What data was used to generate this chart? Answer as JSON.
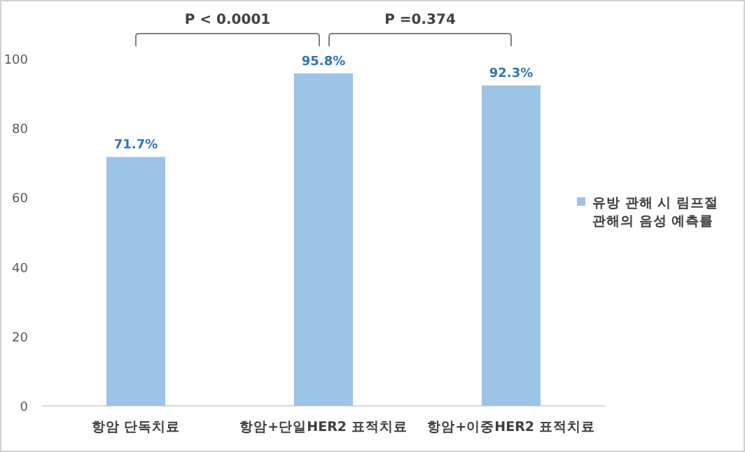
{
  "chart_data": {
    "type": "bar",
    "categories": [
      "항암 단독치료",
      "항암+단일HER2 표적치료",
      "항암+이중HER2 표적치료"
    ],
    "series": [
      {
        "name": "유방 관해 시 림프절 관해의 음성 예측률",
        "color": "#9dc3e6",
        "values": [
          71.7,
          95.8,
          92.3
        ],
        "value_labels": [
          "71.7%",
          "95.8%",
          "92.3%"
        ]
      }
    ],
    "ylim": [
      0,
      100
    ],
    "yticks": [
      0,
      20,
      40,
      60,
      80,
      100
    ],
    "grid": false,
    "legend": "right",
    "annotations": [
      "P < 0.0001",
      "P =0.374"
    ]
  }
}
